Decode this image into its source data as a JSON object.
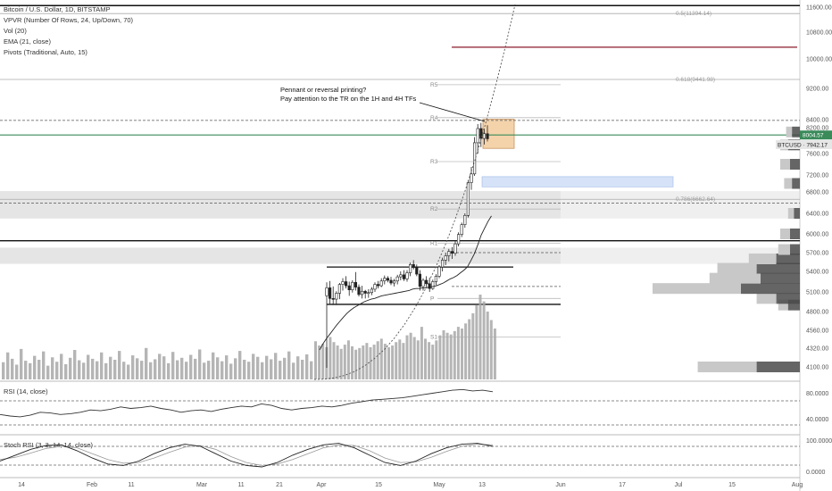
{
  "legend": {
    "symbol": "Bitcoin / U.S. Dollar, 1D, BITSTAMP",
    "vpvr": "VPVR (Number Of Rows, 24, Up/Down, 70)",
    "vol": "Vol (20)",
    "ema": "EMA (21, close)",
    "pivots": "Pivots (Traditional, Auto, 15)",
    "rsi": "RSI (14, close)",
    "stoch": "Stoch RSI (3, 3, 14, 14, close)"
  },
  "annotation": {
    "line1": "Pennant or reversal printing?",
    "line2": "Pay attention to the TR on the 1H and 4H TFs"
  },
  "price_tags": {
    "box_price": "8004.57",
    "symbol_price": "BTCUSD · 7942.17"
  },
  "colors": {
    "up": "#ffffff",
    "down": "#222222",
    "ema": "#222222",
    "fib_line": "#aaaaaa",
    "red_line": "#8b1a2b",
    "green_line": "#3a8a5a",
    "pennant": "#f4d3ab",
    "blue_zone": "#d6e2f7",
    "grey_zone": "#dcdcdc",
    "volume": "#a8a8a8"
  },
  "chart_data": {
    "type": "candlestick",
    "y_ticks": [
      "11600.00",
      "10800.00",
      "10000.00",
      "9200.00",
      "8400.00",
      "8200.00",
      "7600.00",
      "7200.00",
      "6800.00",
      "6400.00",
      "6000.00",
      "5700.00",
      "5400.00",
      "5100.00",
      "4800.00",
      "4560.00",
      "4320.00",
      "4100.00"
    ],
    "x_ticks": [
      "14",
      "Feb",
      "11",
      "Mar",
      "11",
      "21",
      "Apr",
      "15",
      "May",
      "13",
      "Jun",
      "17",
      "Jul",
      "15",
      "Aug"
    ],
    "fib_levels": [
      {
        "label": "0.5(11394.14)",
        "price": 11394.14
      },
      {
        "label": "0.618(9441.98)",
        "price": 9441.98
      },
      {
        "label": "0.786(6662.64)",
        "price": 6662.64
      }
    ],
    "pivots": [
      {
        "label": "R5",
        "price": 9300
      },
      {
        "label": "R4",
        "price": 8450
      },
      {
        "label": "R3",
        "price": 7450
      },
      {
        "label": "R2",
        "price": 6480
      },
      {
        "label": "R1",
        "price": 5850
      },
      {
        "label": "P",
        "price": 5000
      },
      {
        "label": "S1",
        "price": 4470
      }
    ],
    "red_level": 10350,
    "green_level": 8030,
    "support_lines": [
      11650,
      5890,
      5470,
      4910
    ],
    "dashed_levels": [
      8380,
      6590,
      5700,
      5180
    ],
    "zones": [
      {
        "kind": "grey",
        "from": 6300,
        "to": 6820
      },
      {
        "kind": "grey",
        "from": 5520,
        "to": 5780
      },
      {
        "kind": "blue",
        "from": 6920,
        "to": 7160
      },
      {
        "kind": "pennant",
        "from": 7720,
        "to": 8410
      }
    ],
    "candles": [
      {
        "o": 5040,
        "h": 5240,
        "l": 4090,
        "c": 5160
      },
      {
        "o": 5160,
        "h": 5260,
        "l": 4920,
        "c": 5000
      },
      {
        "o": 5000,
        "h": 5180,
        "l": 4900,
        "c": 4990
      },
      {
        "o": 4990,
        "h": 5110,
        "l": 4900,
        "c": 5080
      },
      {
        "o": 5080,
        "h": 5230,
        "l": 4990,
        "c": 5210
      },
      {
        "o": 5210,
        "h": 5300,
        "l": 5120,
        "c": 5250
      },
      {
        "o": 5250,
        "h": 5330,
        "l": 5150,
        "c": 5190
      },
      {
        "o": 5190,
        "h": 5250,
        "l": 5040,
        "c": 5130
      },
      {
        "o": 5130,
        "h": 5270,
        "l": 5090,
        "c": 5240
      },
      {
        "o": 5240,
        "h": 5390,
        "l": 5120,
        "c": 5170
      },
      {
        "o": 5170,
        "h": 5210,
        "l": 5030,
        "c": 5060
      },
      {
        "o": 5060,
        "h": 5190,
        "l": 5000,
        "c": 5110
      },
      {
        "o": 5110,
        "h": 5130,
        "l": 5000,
        "c": 5080
      },
      {
        "o": 5080,
        "h": 5140,
        "l": 5010,
        "c": 5090
      },
      {
        "o": 5090,
        "h": 5170,
        "l": 5050,
        "c": 5140
      },
      {
        "o": 5140,
        "h": 5240,
        "l": 5100,
        "c": 5210
      },
      {
        "o": 5210,
        "h": 5260,
        "l": 5150,
        "c": 5190
      },
      {
        "o": 5190,
        "h": 5300,
        "l": 5170,
        "c": 5260
      },
      {
        "o": 5260,
        "h": 5340,
        "l": 5210,
        "c": 5300
      },
      {
        "o": 5300,
        "h": 5330,
        "l": 5240,
        "c": 5270
      },
      {
        "o": 5270,
        "h": 5320,
        "l": 5200,
        "c": 5230
      },
      {
        "o": 5230,
        "h": 5290,
        "l": 5180,
        "c": 5260
      },
      {
        "o": 5260,
        "h": 5350,
        "l": 5210,
        "c": 5320
      },
      {
        "o": 5320,
        "h": 5400,
        "l": 5270,
        "c": 5350
      },
      {
        "o": 5350,
        "h": 5420,
        "l": 5260,
        "c": 5290
      },
      {
        "o": 5290,
        "h": 5420,
        "l": 5250,
        "c": 5380
      },
      {
        "o": 5380,
        "h": 5540,
        "l": 5330,
        "c": 5510
      },
      {
        "o": 5510,
        "h": 5580,
        "l": 5430,
        "c": 5460
      },
      {
        "o": 5460,
        "h": 5510,
        "l": 5330,
        "c": 5360
      },
      {
        "o": 5360,
        "h": 5420,
        "l": 5120,
        "c": 5180
      },
      {
        "o": 5180,
        "h": 5300,
        "l": 5120,
        "c": 5270
      },
      {
        "o": 5270,
        "h": 5330,
        "l": 5180,
        "c": 5220
      },
      {
        "o": 5220,
        "h": 5310,
        "l": 5100,
        "c": 5150
      },
      {
        "o": 5150,
        "h": 5280,
        "l": 5130,
        "c": 5250
      },
      {
        "o": 5250,
        "h": 5360,
        "l": 5200,
        "c": 5330
      },
      {
        "o": 5330,
        "h": 5500,
        "l": 5300,
        "c": 5470
      },
      {
        "o": 5470,
        "h": 5620,
        "l": 5400,
        "c": 5580
      },
      {
        "o": 5580,
        "h": 5700,
        "l": 5500,
        "c": 5650
      },
      {
        "o": 5650,
        "h": 5760,
        "l": 5560,
        "c": 5720
      },
      {
        "o": 5720,
        "h": 5790,
        "l": 5600,
        "c": 5690
      },
      {
        "o": 5690,
        "h": 5880,
        "l": 5650,
        "c": 5840
      },
      {
        "o": 5840,
        "h": 6030,
        "l": 5800,
        "c": 5990
      },
      {
        "o": 5990,
        "h": 6220,
        "l": 5950,
        "c": 6180
      },
      {
        "o": 6180,
        "h": 6400,
        "l": 6120,
        "c": 6360
      },
      {
        "o": 6360,
        "h": 7080,
        "l": 6320,
        "c": 7020
      },
      {
        "o": 7020,
        "h": 7350,
        "l": 6850,
        "c": 7220
      },
      {
        "o": 7220,
        "h": 7980,
        "l": 7180,
        "c": 7850
      },
      {
        "o": 7850,
        "h": 8290,
        "l": 7600,
        "c": 8180
      },
      {
        "o": 8180,
        "h": 8320,
        "l": 7750,
        "c": 7950
      },
      {
        "o": 7950,
        "h": 8180,
        "l": 7810,
        "c": 8060
      },
      {
        "o": 8060,
        "h": 8260,
        "l": 7880,
        "c": 7942
      }
    ],
    "ema21": [
      4300,
      4380,
      4450,
      4510,
      4570,
      4630,
      4680,
      4730,
      4780,
      4820,
      4860,
      4890,
      4920,
      4950,
      4970,
      4990,
      5000,
      5020,
      5040,
      5050,
      5060,
      5070,
      5080,
      5090,
      5100,
      5110,
      5120,
      5140,
      5150,
      5150,
      5160,
      5160,
      5170,
      5180,
      5190,
      5210,
      5230,
      5260,
      5290,
      5310,
      5340,
      5380,
      5420,
      5470,
      5570,
      5680,
      5820,
      5980,
      6110,
      6240,
      6350
    ],
    "rsi_ticks": [
      "80.0000",
      "40.0000"
    ],
    "stoch_ticks": [
      "100.0000",
      "0.0000"
    ],
    "rsi": [
      52,
      50,
      49,
      51,
      55,
      54,
      52,
      53,
      55,
      58,
      57,
      59,
      62,
      60,
      61,
      63,
      60,
      58,
      55,
      57,
      58,
      56,
      59,
      61,
      63,
      62,
      66,
      64,
      60,
      58,
      60,
      61,
      63,
      62,
      64,
      67,
      69,
      71,
      72,
      73,
      74,
      76,
      78,
      80,
      82,
      84,
      85,
      83,
      84,
      82
    ],
    "stoch_k": [
      35,
      55,
      75,
      88,
      90,
      70,
      45,
      25,
      20,
      35,
      60,
      80,
      92,
      85,
      60,
      35,
      20,
      15,
      30,
      55,
      75,
      90,
      95,
      80,
      55,
      30,
      20,
      35,
      60,
      80,
      92,
      95,
      85
    ],
    "stoch_d": [
      40,
      48,
      62,
      78,
      85,
      80,
      60,
      40,
      28,
      30,
      45,
      65,
      82,
      88,
      75,
      50,
      30,
      20,
      25,
      40,
      60,
      80,
      90,
      88,
      70,
      45,
      30,
      32,
      48,
      68,
      85,
      92,
      90
    ],
    "vpvr": [
      {
        "price": 4100,
        "buy": 0.3,
        "sell": 0.22
      },
      {
        "price": 4900,
        "buy": 0.05,
        "sell": 0.06
      },
      {
        "price": 5000,
        "buy": 0.1,
        "sell": 0.12
      },
      {
        "price": 5150,
        "buy": 0.45,
        "sell": 0.3
      },
      {
        "price": 5300,
        "buy": 0.26,
        "sell": 0.2
      },
      {
        "price": 5450,
        "buy": 0.2,
        "sell": 0.22
      },
      {
        "price": 5600,
        "buy": 0.14,
        "sell": 0.12
      },
      {
        "price": 5750,
        "buy": 0.06,
        "sell": 0.05
      },
      {
        "price": 6000,
        "buy": 0.05,
        "sell": 0.05
      },
      {
        "price": 6400,
        "buy": 0.03,
        "sell": 0.03
      },
      {
        "price": 7000,
        "buy": 0.04,
        "sell": 0.04
      },
      {
        "price": 7400,
        "buy": 0.05,
        "sell": 0.05
      },
      {
        "price": 7800,
        "buy": 0.04,
        "sell": 0.06
      },
      {
        "price": 8100,
        "buy": 0.03,
        "sell": 0.04
      }
    ],
    "volume_history": [
      0.35,
      0.55,
      0.42,
      0.3,
      0.62,
      0.38,
      0.33,
      0.48,
      0.4,
      0.57,
      0.28,
      0.45,
      0.36,
      0.52,
      0.31,
      0.44,
      0.6,
      0.39,
      0.34,
      0.5,
      0.42,
      0.37,
      0.55,
      0.33,
      0.46,
      0.4,
      0.58,
      0.36,
      0.3,
      0.49,
      0.43,
      0.38,
      0.64,
      0.35,
      0.41,
      0.52,
      0.47,
      0.33,
      0.56,
      0.39,
      0.44,
      0.36,
      0.5,
      0.42,
      0.61,
      0.34,
      0.38,
      0.55,
      0.45,
      0.37,
      0.49,
      0.32,
      0.43,
      0.58,
      0.4,
      0.36,
      0.52,
      0.46,
      0.35,
      0.48,
      0.41,
      0.54,
      0.38,
      0.44,
      0.57,
      0.34,
      0.47,
      0.4,
      0.51,
      0.37
    ],
    "volume_recent": [
      0.45,
      0.4,
      0.42,
      0.38,
      0.5,
      0.44,
      0.4,
      0.36,
      0.41,
      0.46,
      0.39,
      0.35,
      0.37,
      0.4,
      0.43,
      0.38,
      0.41,
      0.45,
      0.48,
      0.42,
      0.38,
      0.4,
      0.44,
      0.47,
      0.43,
      0.52,
      0.55,
      0.5,
      0.46,
      0.62,
      0.48,
      0.44,
      0.41,
      0.46,
      0.52,
      0.58,
      0.55,
      0.53,
      0.57,
      0.62,
      0.6,
      0.66,
      0.71,
      0.78,
      0.88,
      1.0,
      0.92,
      0.8,
      0.7,
      0.6
    ]
  }
}
